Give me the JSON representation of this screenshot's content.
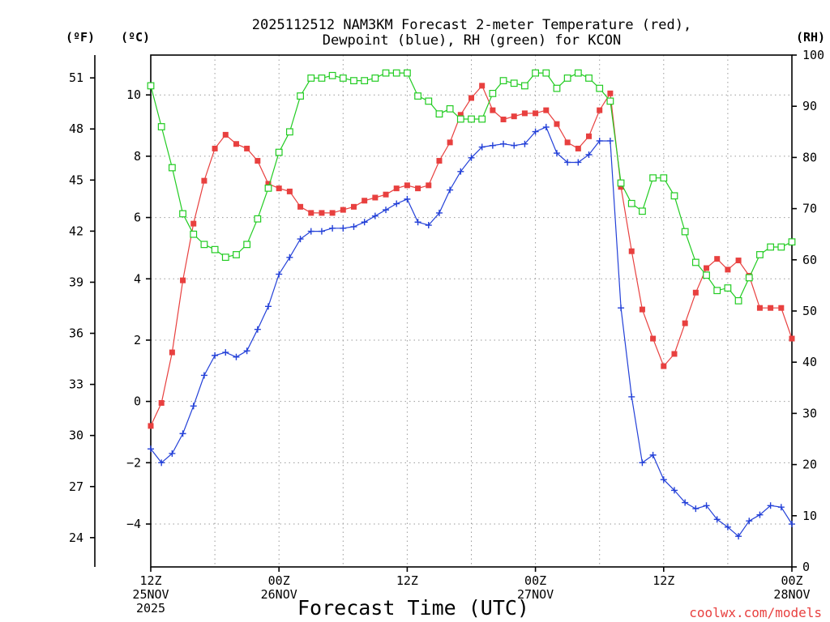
{
  "header": {
    "line1": "2025112512 NAM3KM Forecast 2-meter Temperature (red),",
    "line2": "Dewpoint (blue), RH (green) for KCON"
  },
  "units": {
    "fahrenheit": "(ºF)",
    "celsius": "(ºC)",
    "rh": "(RH)"
  },
  "credit": "coolwx.com/models",
  "colors": {
    "temperature": "#e8403f",
    "dewpoint": "#2340d8",
    "rh": "#22cc22",
    "axis": "#000000"
  },
  "chart_data": {
    "type": "line",
    "title": "2025112512 NAM3KM Forecast 2-meter Temperature (red), Dewpoint (blue), RH (green) for KCON",
    "xlabel": "Forecast Time (UTC)",
    "x": [
      0,
      1,
      2,
      3,
      4,
      5,
      6,
      7,
      8,
      9,
      10,
      11,
      12,
      13,
      14,
      15,
      16,
      17,
      18,
      19,
      20,
      21,
      22,
      23,
      24,
      25,
      26,
      27,
      28,
      29,
      30,
      31,
      32,
      33,
      34,
      35,
      36,
      37,
      38,
      39,
      40,
      41,
      42,
      43,
      44,
      45,
      46,
      47,
      48,
      49,
      50,
      51,
      52,
      53,
      54,
      55,
      56,
      57,
      58,
      59,
      60
    ],
    "x_unit": "hours since 2025-11-25 12Z",
    "xlim": [
      0,
      60
    ],
    "x_ticks": [
      {
        "at": 0,
        "lines": [
          "12Z",
          "25NOV",
          "2025"
        ]
      },
      {
        "at": 12,
        "lines": [
          "00Z",
          "26NOV"
        ]
      },
      {
        "at": 24,
        "lines": [
          "12Z"
        ]
      },
      {
        "at": 36,
        "lines": [
          "00Z",
          "27NOV"
        ]
      },
      {
        "at": 48,
        "lines": [
          "12Z"
        ]
      },
      {
        "at": 60,
        "lines": [
          "00Z",
          "28NOV"
        ]
      }
    ],
    "y_celsius": {
      "label": "(ºC)",
      "lim": [
        -5.4,
        11.3
      ],
      "ticks": [
        -4,
        -2,
        0,
        2,
        4,
        6,
        8,
        10
      ]
    },
    "y_fahrenheit": {
      "label": "(ºF)",
      "ticks": [
        24,
        27,
        30,
        33,
        36,
        39,
        42,
        45,
        48,
        51
      ]
    },
    "y_rh": {
      "label": "(RH)",
      "lim": [
        0,
        100
      ],
      "ticks": [
        0,
        10,
        20,
        30,
        40,
        50,
        60,
        70,
        80,
        90,
        100
      ]
    },
    "series": [
      {
        "name": "2-meter Temperature",
        "axis": "celsius",
        "color": "#e8403f",
        "marker": "filled-square",
        "values": [
          -0.8,
          -0.05,
          1.6,
          3.95,
          5.8,
          7.2,
          8.25,
          8.7,
          8.4,
          8.25,
          7.85,
          7.1,
          6.95,
          6.85,
          6.35,
          6.15,
          6.15,
          6.15,
          6.25,
          6.35,
          6.55,
          6.65,
          6.75,
          6.95,
          7.05,
          6.95,
          7.05,
          7.85,
          8.45,
          9.35,
          9.9,
          10.3,
          9.5,
          9.2,
          9.3,
          9.4,
          9.4,
          9.5,
          9.05,
          8.45,
          8.25,
          8.65,
          9.5,
          10.05,
          7.0,
          4.9,
          3.0,
          2.05,
          1.15,
          1.55,
          2.55,
          3.55,
          4.35,
          4.65,
          4.3,
          4.6,
          4.1,
          3.05,
          3.05,
          3.05,
          2.05
        ]
      },
      {
        "name": "Dewpoint",
        "axis": "celsius",
        "color": "#2340d8",
        "marker": "plus",
        "values": [
          -1.55,
          -2.0,
          -1.7,
          -1.05,
          -0.15,
          0.85,
          1.5,
          1.6,
          1.45,
          1.65,
          2.35,
          3.1,
          4.15,
          4.7,
          5.3,
          5.55,
          5.55,
          5.65,
          5.65,
          5.7,
          5.85,
          6.05,
          6.25,
          6.45,
          6.6,
          5.85,
          5.75,
          6.15,
          6.9,
          7.5,
          7.95,
          8.3,
          8.35,
          8.4,
          8.35,
          8.4,
          8.8,
          8.95,
          8.1,
          7.8,
          7.8,
          8.05,
          8.5,
          8.5,
          3.05,
          0.15,
          -2.0,
          -1.75,
          -2.55,
          -2.9,
          -3.3,
          -3.5,
          -3.4,
          -3.85,
          -4.1,
          -4.4,
          -3.9,
          -3.7,
          -3.4,
          -3.45,
          -4.0
        ]
      },
      {
        "name": "RH",
        "axis": "rh",
        "color": "#22cc22",
        "marker": "open-square",
        "values": [
          94,
          86,
          78,
          69,
          65,
          63,
          62,
          60.5,
          61,
          63,
          68,
          74,
          81,
          85,
          92,
          95.5,
          95.5,
          96,
          95.5,
          95,
          95,
          95.5,
          96.5,
          96.5,
          96.5,
          92,
          91,
          88.5,
          89.5,
          87.5,
          87.5,
          87.5,
          92.5,
          95,
          94.5,
          94,
          96.5,
          96.5,
          93.5,
          95.5,
          96.5,
          95.5,
          93.5,
          91,
          75,
          71,
          69.5,
          76,
          76,
          72.5,
          65.5,
          59.5,
          57,
          54,
          54.5,
          52,
          56.5,
          61,
          62.5,
          62.5,
          63.5
        ]
      }
    ]
  }
}
